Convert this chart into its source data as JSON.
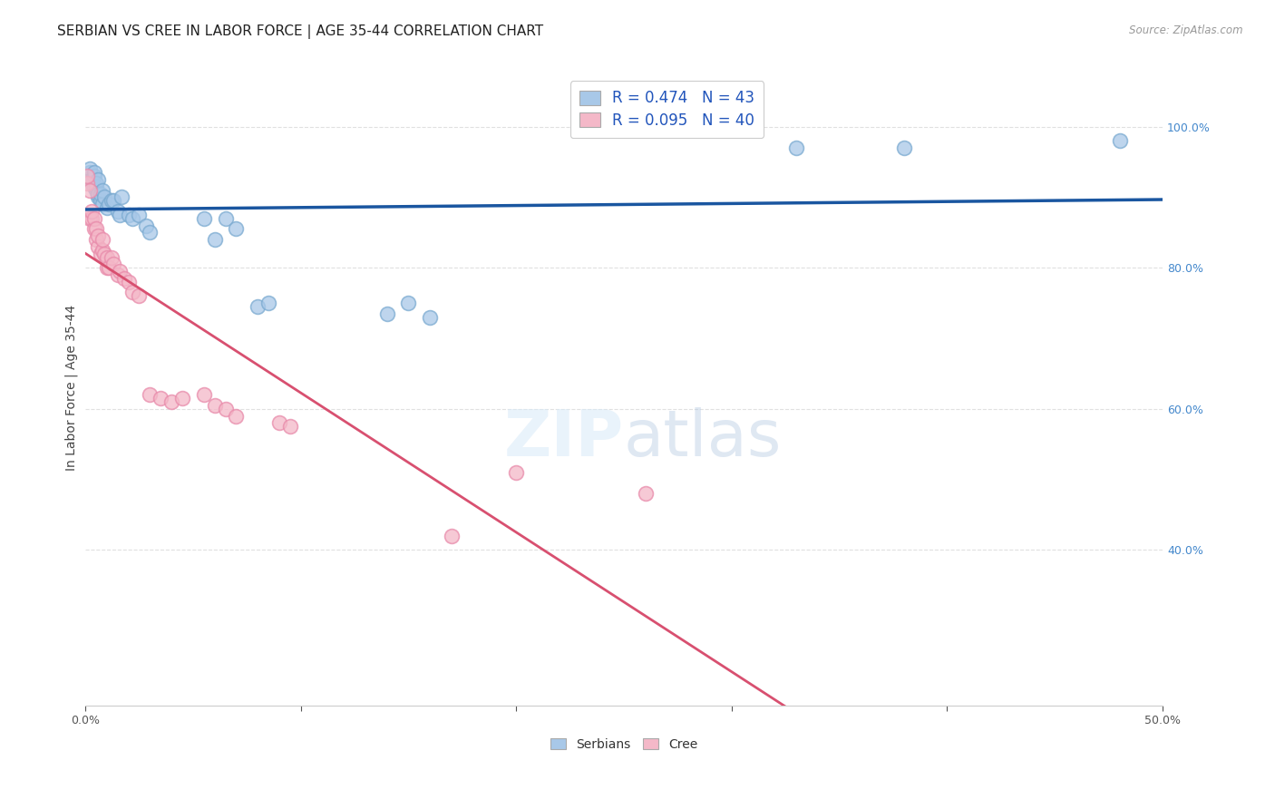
{
  "title": "SERBIAN VS CREE IN LABOR FORCE | AGE 35-44 CORRELATION CHART",
  "source": "Source: ZipAtlas.com",
  "ylabel": "In Labor Force | Age 35-44",
  "xlim": [
    0.0,
    0.5
  ],
  "ylim": [
    0.18,
    1.08
  ],
  "yticks_right": [
    0.4,
    0.6,
    0.8,
    1.0
  ],
  "ytick_right_labels": [
    "40.0%",
    "60.0%",
    "80.0%",
    "100.0%"
  ],
  "serbian_R": 0.474,
  "serbian_N": 43,
  "cree_R": 0.095,
  "cree_N": 40,
  "serbian_color": "#a8c8e8",
  "cree_color": "#f4b8c8",
  "serbian_edge_color": "#7aaad0",
  "cree_edge_color": "#e88aaa",
  "serbian_line_color": "#1a56a0",
  "cree_line_color": "#d85070",
  "serbian_x": [
    0.001,
    0.002,
    0.002,
    0.003,
    0.003,
    0.004,
    0.004,
    0.004,
    0.005,
    0.005,
    0.005,
    0.006,
    0.006,
    0.006,
    0.007,
    0.007,
    0.008,
    0.008,
    0.009,
    0.01,
    0.011,
    0.012,
    0.013,
    0.015,
    0.016,
    0.017,
    0.02,
    0.022,
    0.025,
    0.028,
    0.03,
    0.055,
    0.06,
    0.065,
    0.07,
    0.08,
    0.085,
    0.14,
    0.15,
    0.16,
    0.33,
    0.38,
    0.48
  ],
  "serbian_y": [
    0.93,
    0.935,
    0.94,
    0.92,
    0.925,
    0.915,
    0.93,
    0.935,
    0.91,
    0.915,
    0.92,
    0.9,
    0.905,
    0.925,
    0.895,
    0.905,
    0.89,
    0.91,
    0.9,
    0.885,
    0.89,
    0.895,
    0.895,
    0.88,
    0.875,
    0.9,
    0.875,
    0.87,
    0.875,
    0.86,
    0.85,
    0.87,
    0.84,
    0.87,
    0.855,
    0.745,
    0.75,
    0.735,
    0.75,
    0.73,
    0.97,
    0.97,
    0.98
  ],
  "cree_x": [
    0.001,
    0.001,
    0.002,
    0.002,
    0.003,
    0.003,
    0.004,
    0.004,
    0.005,
    0.005,
    0.006,
    0.006,
    0.007,
    0.008,
    0.008,
    0.009,
    0.01,
    0.01,
    0.011,
    0.012,
    0.013,
    0.015,
    0.016,
    0.018,
    0.02,
    0.022,
    0.025,
    0.03,
    0.035,
    0.04,
    0.045,
    0.055,
    0.06,
    0.065,
    0.07,
    0.09,
    0.095,
    0.2,
    0.26,
    0.17
  ],
  "cree_y": [
    0.92,
    0.93,
    0.87,
    0.91,
    0.87,
    0.88,
    0.855,
    0.87,
    0.84,
    0.855,
    0.83,
    0.845,
    0.82,
    0.825,
    0.84,
    0.82,
    0.8,
    0.815,
    0.8,
    0.815,
    0.805,
    0.79,
    0.795,
    0.785,
    0.78,
    0.765,
    0.76,
    0.62,
    0.615,
    0.61,
    0.615,
    0.62,
    0.605,
    0.6,
    0.59,
    0.58,
    0.575,
    0.51,
    0.48,
    0.42
  ],
  "background_color": "#ffffff",
  "grid_color": "#dddddd",
  "title_fontsize": 11,
  "axis_label_fontsize": 10,
  "tick_fontsize": 9,
  "legend_fontsize": 12
}
